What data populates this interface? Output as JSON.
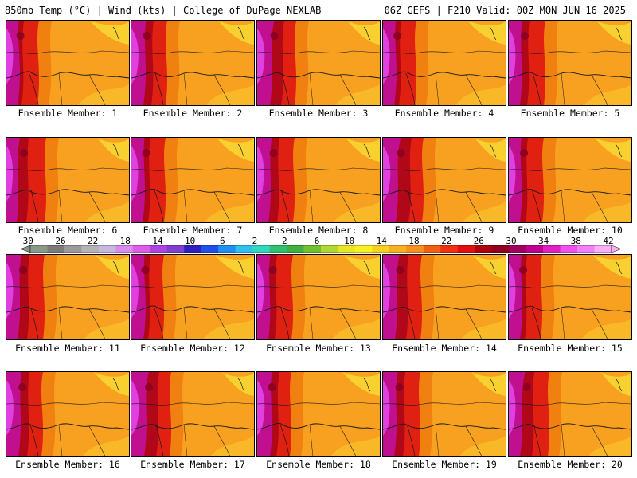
{
  "header": {
    "left": "850mb Temp (°C) | Wind (kts) | College of DuPage NEXLAB",
    "right": "06Z GEFS | F210 Valid: 00Z MON JUN 16 2025"
  },
  "panels": [
    {
      "label": "Ensemble Member: 1",
      "hot": 0.8
    },
    {
      "label": "Ensemble Member: 2",
      "hot": 0.85
    },
    {
      "label": "Ensemble Member: 3",
      "hot": 0.9
    },
    {
      "label": "Ensemble Member: 4",
      "hot": 0.8
    },
    {
      "label": "Ensemble Member: 5",
      "hot": 0.75
    },
    {
      "label": "Ensemble Member: 6",
      "hot": 0.7
    },
    {
      "label": "Ensemble Member: 7",
      "hot": 0.8
    },
    {
      "label": "Ensemble Member: 8",
      "hot": 0.8
    },
    {
      "label": "Ensemble Member: 9",
      "hot": 0.9
    },
    {
      "label": "Ensemble Member: 10",
      "hot": 0.75
    },
    {
      "label": "Ensemble Member: 11",
      "hot": 0.8
    },
    {
      "label": "Ensemble Member: 12",
      "hot": 0.85
    },
    {
      "label": "Ensemble Member: 13",
      "hot": 0.75
    },
    {
      "label": "Ensemble Member: 14",
      "hot": 0.85
    },
    {
      "label": "Ensemble Member: 15",
      "hot": 0.8
    },
    {
      "label": "Ensemble Member: 16",
      "hot": 0.85
    },
    {
      "label": "Ensemble Member: 17",
      "hot": 0.9
    },
    {
      "label": "Ensemble Member: 18",
      "hot": 0.9
    },
    {
      "label": "Ensemble Member: 19",
      "hot": 0.8
    },
    {
      "label": "Ensemble Member: 20",
      "hot": 0.8
    }
  ],
  "colorbar": {
    "tick_labels": [
      "−30",
      "−26",
      "−22",
      "−18",
      "−14",
      "−10",
      "−6",
      "−2",
      "2",
      "6",
      "10",
      "14",
      "18",
      "22",
      "26",
      "30",
      "34",
      "38",
      "42"
    ],
    "colors": [
      "#8a9a8a",
      "#7c7c7c",
      "#9a9a9a",
      "#b4b4b4",
      "#c8b8e0",
      "#d98cf0",
      "#e05ce8",
      "#b044e0",
      "#8040d0",
      "#3020c0",
      "#2050e8",
      "#2090f0",
      "#30c0f0",
      "#30d8c0",
      "#30c070",
      "#40b040",
      "#70c030",
      "#b0d830",
      "#e8e820",
      "#f8f020",
      "#f8d020",
      "#f8b020",
      "#f89020",
      "#f06010",
      "#f03010",
      "#e01010",
      "#b00010",
      "#900020",
      "#a00060",
      "#c00090",
      "#e020c0",
      "#f050f0",
      "#f080f8",
      "#f8b0f8"
    ]
  }
}
